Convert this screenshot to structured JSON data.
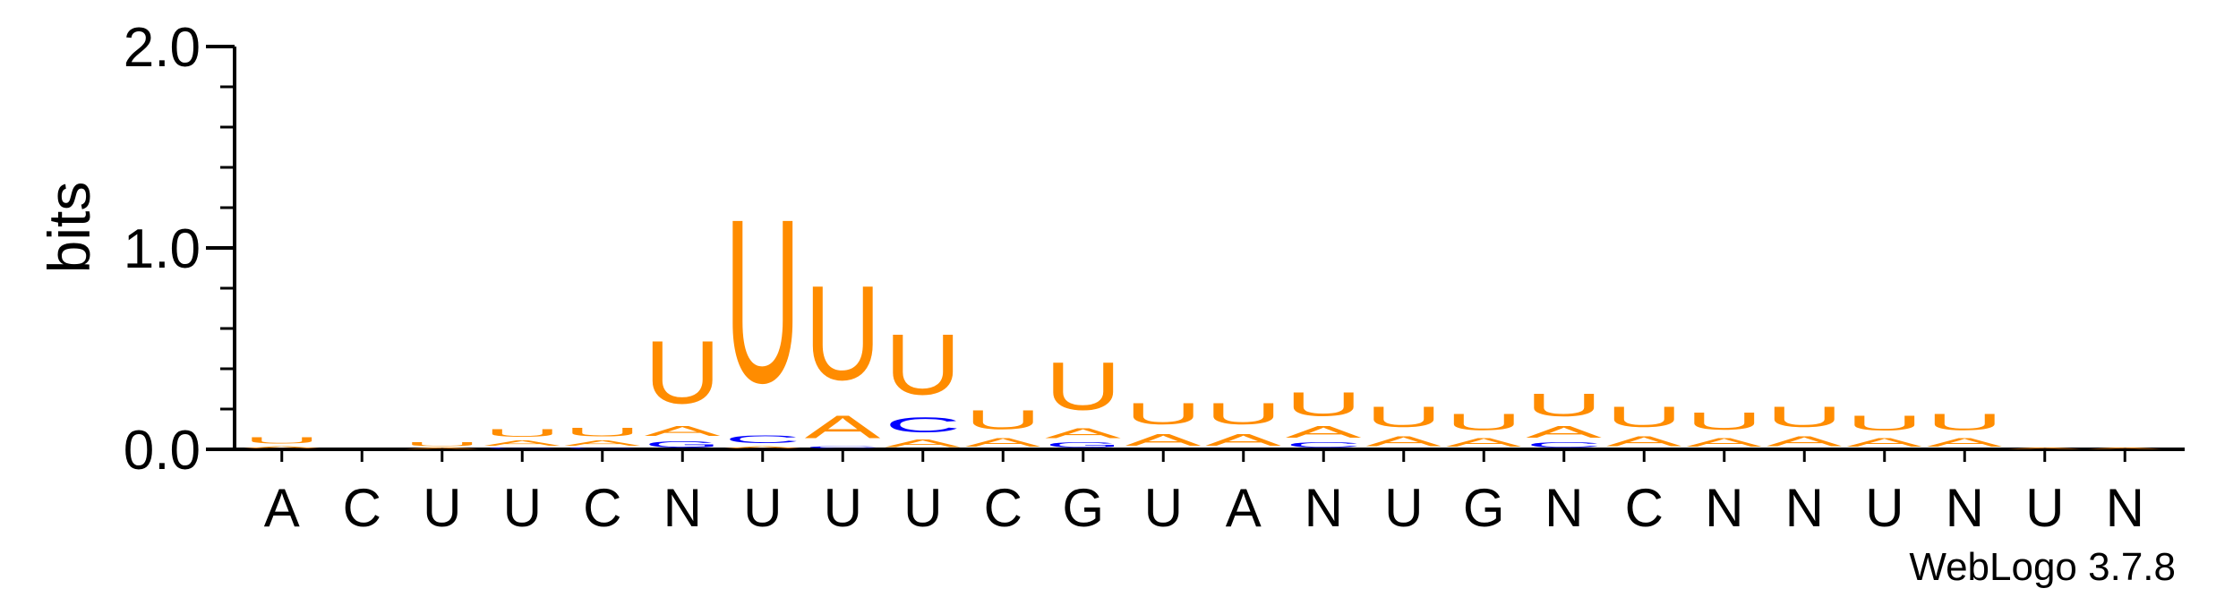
{
  "chart_data": {
    "type": "sequence-logo",
    "ylabel": "bits",
    "ylim": [
      0,
      2.0
    ],
    "yticks": [
      "0.0",
      "1.0",
      "2.0"
    ],
    "alphabet": [
      "A",
      "C",
      "G",
      "U"
    ],
    "colors": {
      "A": "#ff8c00",
      "U": "#ff8c00",
      "C": "#0000ff",
      "G": "#0000ff"
    },
    "consensus": [
      "A",
      "C",
      "U",
      "U",
      "C",
      "N",
      "U",
      "U",
      "U",
      "C",
      "G",
      "U",
      "A",
      "N",
      "U",
      "G",
      "N",
      "C",
      "N",
      "N",
      "U",
      "N",
      "U",
      "N"
    ],
    "positions": [
      {
        "stack": [
          [
            "A",
            0.02
          ],
          [
            "U",
            0.05
          ]
        ]
      },
      {
        "stack": []
      },
      {
        "stack": [
          [
            "A",
            0.01
          ],
          [
            "U",
            0.03
          ]
        ]
      },
      {
        "stack": [
          [
            "C",
            0.01
          ],
          [
            "A",
            0.04
          ],
          [
            "U",
            0.06
          ]
        ]
      },
      {
        "stack": [
          [
            "C",
            0.01
          ],
          [
            "A",
            0.04
          ],
          [
            "U",
            0.07
          ]
        ]
      },
      {
        "stack": [
          [
            "G",
            0.05
          ],
          [
            "A",
            0.08
          ],
          [
            "U",
            0.5
          ]
        ]
      },
      {
        "stack": [
          [
            "A",
            0.02
          ],
          [
            "C",
            0.06
          ],
          [
            "U",
            1.3
          ]
        ]
      },
      {
        "stack": [
          [
            "C",
            0.02
          ],
          [
            "A",
            0.18
          ],
          [
            "U",
            0.75
          ]
        ]
      },
      {
        "stack": [
          [
            "A",
            0.06
          ],
          [
            "C",
            0.12
          ],
          [
            "U",
            0.48
          ]
        ]
      },
      {
        "stack": [
          [
            "A",
            0.07
          ],
          [
            "U",
            0.15
          ]
        ]
      },
      {
        "stack": [
          [
            "G",
            0.04
          ],
          [
            "A",
            0.08
          ],
          [
            "U",
            0.38
          ]
        ]
      },
      {
        "stack": [
          [
            "A",
            0.09
          ],
          [
            "U",
            0.17
          ]
        ]
      },
      {
        "stack": [
          [
            "A",
            0.09
          ],
          [
            "U",
            0.17
          ]
        ]
      },
      {
        "stack": [
          [
            "C",
            0.04
          ],
          [
            "A",
            0.09
          ],
          [
            "U",
            0.19
          ]
        ]
      },
      {
        "stack": [
          [
            "A",
            0.08
          ],
          [
            "U",
            0.16
          ]
        ]
      },
      {
        "stack": [
          [
            "A",
            0.07
          ],
          [
            "U",
            0.13
          ]
        ]
      },
      {
        "stack": [
          [
            "C",
            0.04
          ],
          [
            "A",
            0.09
          ],
          [
            "U",
            0.18
          ]
        ]
      },
      {
        "stack": [
          [
            "A",
            0.08
          ],
          [
            "U",
            0.16
          ]
        ]
      },
      {
        "stack": [
          [
            "A",
            0.07
          ],
          [
            "U",
            0.14
          ]
        ]
      },
      {
        "stack": [
          [
            "A",
            0.08
          ],
          [
            "U",
            0.16
          ]
        ]
      },
      {
        "stack": [
          [
            "A",
            0.07
          ],
          [
            "U",
            0.12
          ]
        ]
      },
      {
        "stack": [
          [
            "A",
            0.07
          ],
          [
            "U",
            0.13
          ]
        ]
      },
      {
        "stack": [
          [
            "A",
            0.01
          ]
        ]
      },
      {
        "stack": [
          [
            "A",
            0.01
          ]
        ]
      }
    ]
  },
  "footer": {
    "credit": "WebLogo 3.7.8"
  }
}
